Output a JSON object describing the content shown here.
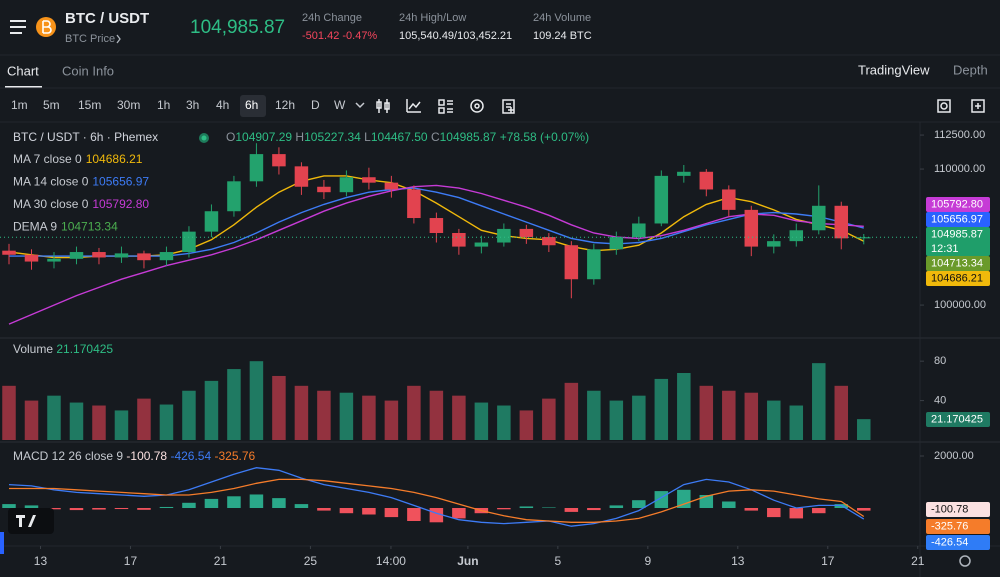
{
  "header": {
    "pair": "BTC / USDT",
    "subtitle": "BTC Price",
    "price": "104,985.87",
    "stats": [
      {
        "label": "24h Change",
        "value": "-501.42 -0.47%"
      },
      {
        "label": "24h High/Low",
        "value": "105,540.49/103,452.21"
      },
      {
        "label": "24h Volume",
        "value": "109.24 BTC"
      }
    ]
  },
  "tabs": [
    "Chart",
    "Coin Info"
  ],
  "views": [
    "TradingView",
    "Depth"
  ],
  "intervals": [
    "1m",
    "5m",
    "15m",
    "30m",
    "1h",
    "3h",
    "4h",
    "6h",
    "12h",
    "D",
    "W"
  ],
  "legend": {
    "symbol": "BTC / USDT · 6h · Phemex",
    "o_label": "O",
    "open": "104907.29",
    "h_label": "H",
    "high": "105227.34",
    "l_label": "L",
    "low": "104467.50",
    "c_label": "C",
    "close": "104985.87",
    "change": "+78.58 (+0.07%)"
  },
  "indicators": [
    {
      "label": "MA 7 close 0",
      "value": "104686.21",
      "color": "#f0b90b"
    },
    {
      "label": "MA 14 close 0",
      "value": "105656.97",
      "color": "#3d7bf5"
    },
    {
      "label": "MA 30 close 0",
      "value": "105792.80",
      "color": "#c63bd6"
    },
    {
      "label": "DEMA 9",
      "value": "104713.34",
      "color": "#4caf50"
    }
  ],
  "price_badges": [
    {
      "text": "105792.80",
      "color": "#c63bd6"
    },
    {
      "text": "105656.97",
      "color": "#2962ff"
    },
    {
      "text": "104985.87",
      "sub": "12:31",
      "color": "#1f9e6a"
    },
    {
      "text": "104713.34",
      "color": "#6a9a2a"
    },
    {
      "text": "104686.21",
      "color": "#f0b90b"
    }
  ],
  "volume_legend": {
    "label": "Volume",
    "value": "21.170425"
  },
  "volume_badge": "21.170425",
  "macd_legend": {
    "label": "MACD 12 26 close 9",
    "hist": "-100.78",
    "macd": "-426.54",
    "signal": "-325.76"
  },
  "macd_badges": [
    {
      "text": "-100.78",
      "color": "#fbe1e1"
    },
    {
      "text": "-325.76",
      "color": "#f57c2a"
    },
    {
      "text": "-426.54",
      "color": "#2f7cf6"
    }
  ],
  "chart_data": [
    {
      "type": "candlestick",
      "up_color": "#23a26d",
      "down_color": "#e2434f",
      "grid": false,
      "x": [
        11.6,
        12.6,
        13.6,
        14.6,
        15.6,
        16.6,
        17.6,
        18.6,
        19.6,
        20.6,
        21.6,
        22.6,
        23.6,
        24.6,
        25.6,
        26.6,
        27.6,
        28.6,
        29.6,
        30.6,
        31.6,
        32.6,
        33.6,
        34.6,
        35.6,
        36.6,
        37.6,
        38.6,
        39.6,
        40.6,
        41.6,
        42.6,
        43.6,
        44.6,
        45.6,
        46.6,
        47.6,
        48.6,
        49.6
      ],
      "open": [
        104000,
        103700,
        103200,
        103400,
        103900,
        103500,
        103800,
        103300,
        103900,
        105400,
        106900,
        109100,
        111100,
        110200,
        108700,
        108300,
        109400,
        109000,
        108500,
        106400,
        105300,
        104300,
        104600,
        105600,
        105000,
        104400,
        101900,
        104100,
        105000,
        106000,
        109500,
        109800,
        108500,
        107000,
        104300,
        104700,
        105500,
        107300,
        104907.29
      ],
      "high": [
        104500,
        104100,
        103900,
        104300,
        104200,
        104300,
        104000,
        104300,
        105800,
        107400,
        109500,
        111900,
        111600,
        110500,
        109200,
        109900,
        110100,
        109500,
        108800,
        106800,
        105600,
        105100,
        106000,
        105900,
        105300,
        104700,
        104500,
        105400,
        106500,
        109900,
        110300,
        110000,
        108800,
        107300,
        105200,
        106000,
        108800,
        107600,
        105227.34
      ],
      "low": [
        103000,
        102600,
        102700,
        103000,
        103000,
        103100,
        102700,
        102900,
        103500,
        105000,
        106500,
        108700,
        109600,
        108100,
        107800,
        108000,
        108500,
        107900,
        106000,
        104600,
        103700,
        103800,
        104300,
        104500,
        103900,
        100500,
        101500,
        103700,
        104700,
        105800,
        109000,
        108000,
        106500,
        103600,
        103800,
        104300,
        105200,
        104100,
        104467.5
      ],
      "close": [
        103700,
        103200,
        103400,
        103900,
        103500,
        103800,
        103300,
        103900,
        105400,
        106900,
        109100,
        111100,
        110200,
        108700,
        108300,
        109400,
        109000,
        108500,
        106400,
        105300,
        104300,
        104600,
        105600,
        105000,
        104400,
        101900,
        104100,
        105000,
        106000,
        109500,
        109800,
        108500,
        107000,
        104300,
        104700,
        105500,
        107300,
        104907.29,
        104985.87
      ],
      "lines": [
        {
          "name": "MA 7",
          "color": "#f0b90b",
          "values": [
            103900,
            103700,
            103500,
            103500,
            103600,
            103600,
            103600,
            103700,
            104100,
            104800,
            105900,
            107200,
            108300,
            109100,
            109500,
            109500,
            109200,
            109000,
            108400,
            107500,
            106500,
            105500,
            105100,
            104900,
            104800,
            104300,
            104000,
            104100,
            104400,
            105300,
            106500,
            107400,
            107900,
            107600,
            107000,
            106300,
            105900,
            105500,
            104686.21
          ]
        },
        {
          "name": "MA 14",
          "color": "#3d7bf5",
          "values": [
            103600,
            103600,
            103600,
            103600,
            103600,
            103600,
            103600,
            103600,
            103800,
            104100,
            104600,
            105300,
            106100,
            106800,
            107400,
            107900,
            108300,
            108500,
            108600,
            108300,
            107900,
            107300,
            106700,
            106100,
            105500,
            104900,
            104600,
            104500,
            104600,
            104900,
            105400,
            105900,
            106300,
            106700,
            106800,
            106700,
            106500,
            106100,
            105656.97
          ]
        },
        {
          "name": "MA 30",
          "color": "#c63bd6",
          "values": [
            98600,
            99300,
            100000,
            100700,
            101300,
            101900,
            102400,
            102900,
            103300,
            103700,
            104200,
            104800,
            105500,
            106200,
            106900,
            107500,
            108000,
            108400,
            108700,
            108800,
            108600,
            108200,
            107700,
            107200,
            106600,
            105900,
            105300,
            105000,
            104900,
            105100,
            105500,
            106000,
            106500,
            106700,
            106600,
            106200,
            106000,
            105900,
            105792.8
          ]
        }
      ],
      "ylim": [
        97800,
        113240
      ],
      "yticks": [
        {
          "value": 112500,
          "label": "112500.00"
        },
        {
          "value": 110000,
          "label": "110000.00"
        },
        {
          "value": 100000,
          "label": "100000.00"
        }
      ],
      "xlim": [
        11.2,
        52.1
      ],
      "xticks": [
        13,
        17,
        21,
        25,
        {
          "value": 28.58,
          "label": "14:00"
        },
        {
          "value": 32,
          "label": "Jun"
        },
        {
          "value": 36,
          "label": "5"
        },
        {
          "value": 40,
          "label": "9"
        },
        {
          "value": 44,
          "label": "13"
        },
        {
          "value": 48,
          "label": "17"
        },
        {
          "value": 52,
          "label": "21"
        }
      ]
    },
    {
      "type": "bar",
      "values": [
        55,
        40,
        45,
        38,
        35,
        30,
        42,
        36,
        50,
        60,
        72,
        80,
        65,
        55,
        50,
        48,
        45,
        40,
        55,
        50,
        45,
        38,
        35,
        30,
        42,
        58,
        50,
        40,
        45,
        62,
        68,
        55,
        50,
        48,
        40,
        35,
        78,
        55,
        21.17
      ],
      "up_color": "#1f7a62",
      "down_color": "#93323f",
      "ylim": [
        0,
        101.5
      ],
      "yticks": [
        40,
        80
      ]
    },
    {
      "type": "macd",
      "histogram": [
        150,
        100,
        -50,
        -80,
        -60,
        -40,
        -70,
        40,
        200,
        350,
        450,
        520,
        380,
        150,
        -100,
        -200,
        -250,
        -350,
        -500,
        -550,
        -400,
        -200,
        -50,
        60,
        20,
        -150,
        -80,
        100,
        300,
        650,
        700,
        500,
        250,
        -100,
        -350,
        -400,
        -200,
        150,
        -100.78
      ],
      "pos_color": "#2aa889",
      "neg_color": "#f0525c",
      "series": [
        {
          "name": "MACD",
          "color": "#3d7bf5",
          "values": [
            900,
            850,
            700,
            600,
            550,
            500,
            450,
            500,
            700,
            1000,
            1300,
            1550,
            1450,
            1150,
            900,
            750,
            600,
            400,
            100,
            -200,
            -450,
            -550,
            -600,
            -550,
            -500,
            -700,
            -600,
            -400,
            -100,
            400,
            900,
            1100,
            1000,
            700,
            300,
            0,
            100,
            100,
            -426.54
          ]
        },
        {
          "name": "Signal",
          "color": "#f57c2a",
          "values": [
            750,
            750,
            750,
            700,
            650,
            600,
            550,
            500,
            500,
            600,
            750,
            950,
            1100,
            1100,
            1050,
            950,
            850,
            750,
            600,
            400,
            150,
            -100,
            -300,
            -450,
            -500,
            -550,
            -550,
            -500,
            -400,
            -150,
            150,
            450,
            650,
            700,
            650,
            500,
            350,
            250,
            -325.76
          ]
        }
      ],
      "ylim": [
        -1423,
        2423
      ],
      "yticks": [
        {
          "value": 2000,
          "label": "2000.00"
        }
      ]
    }
  ]
}
